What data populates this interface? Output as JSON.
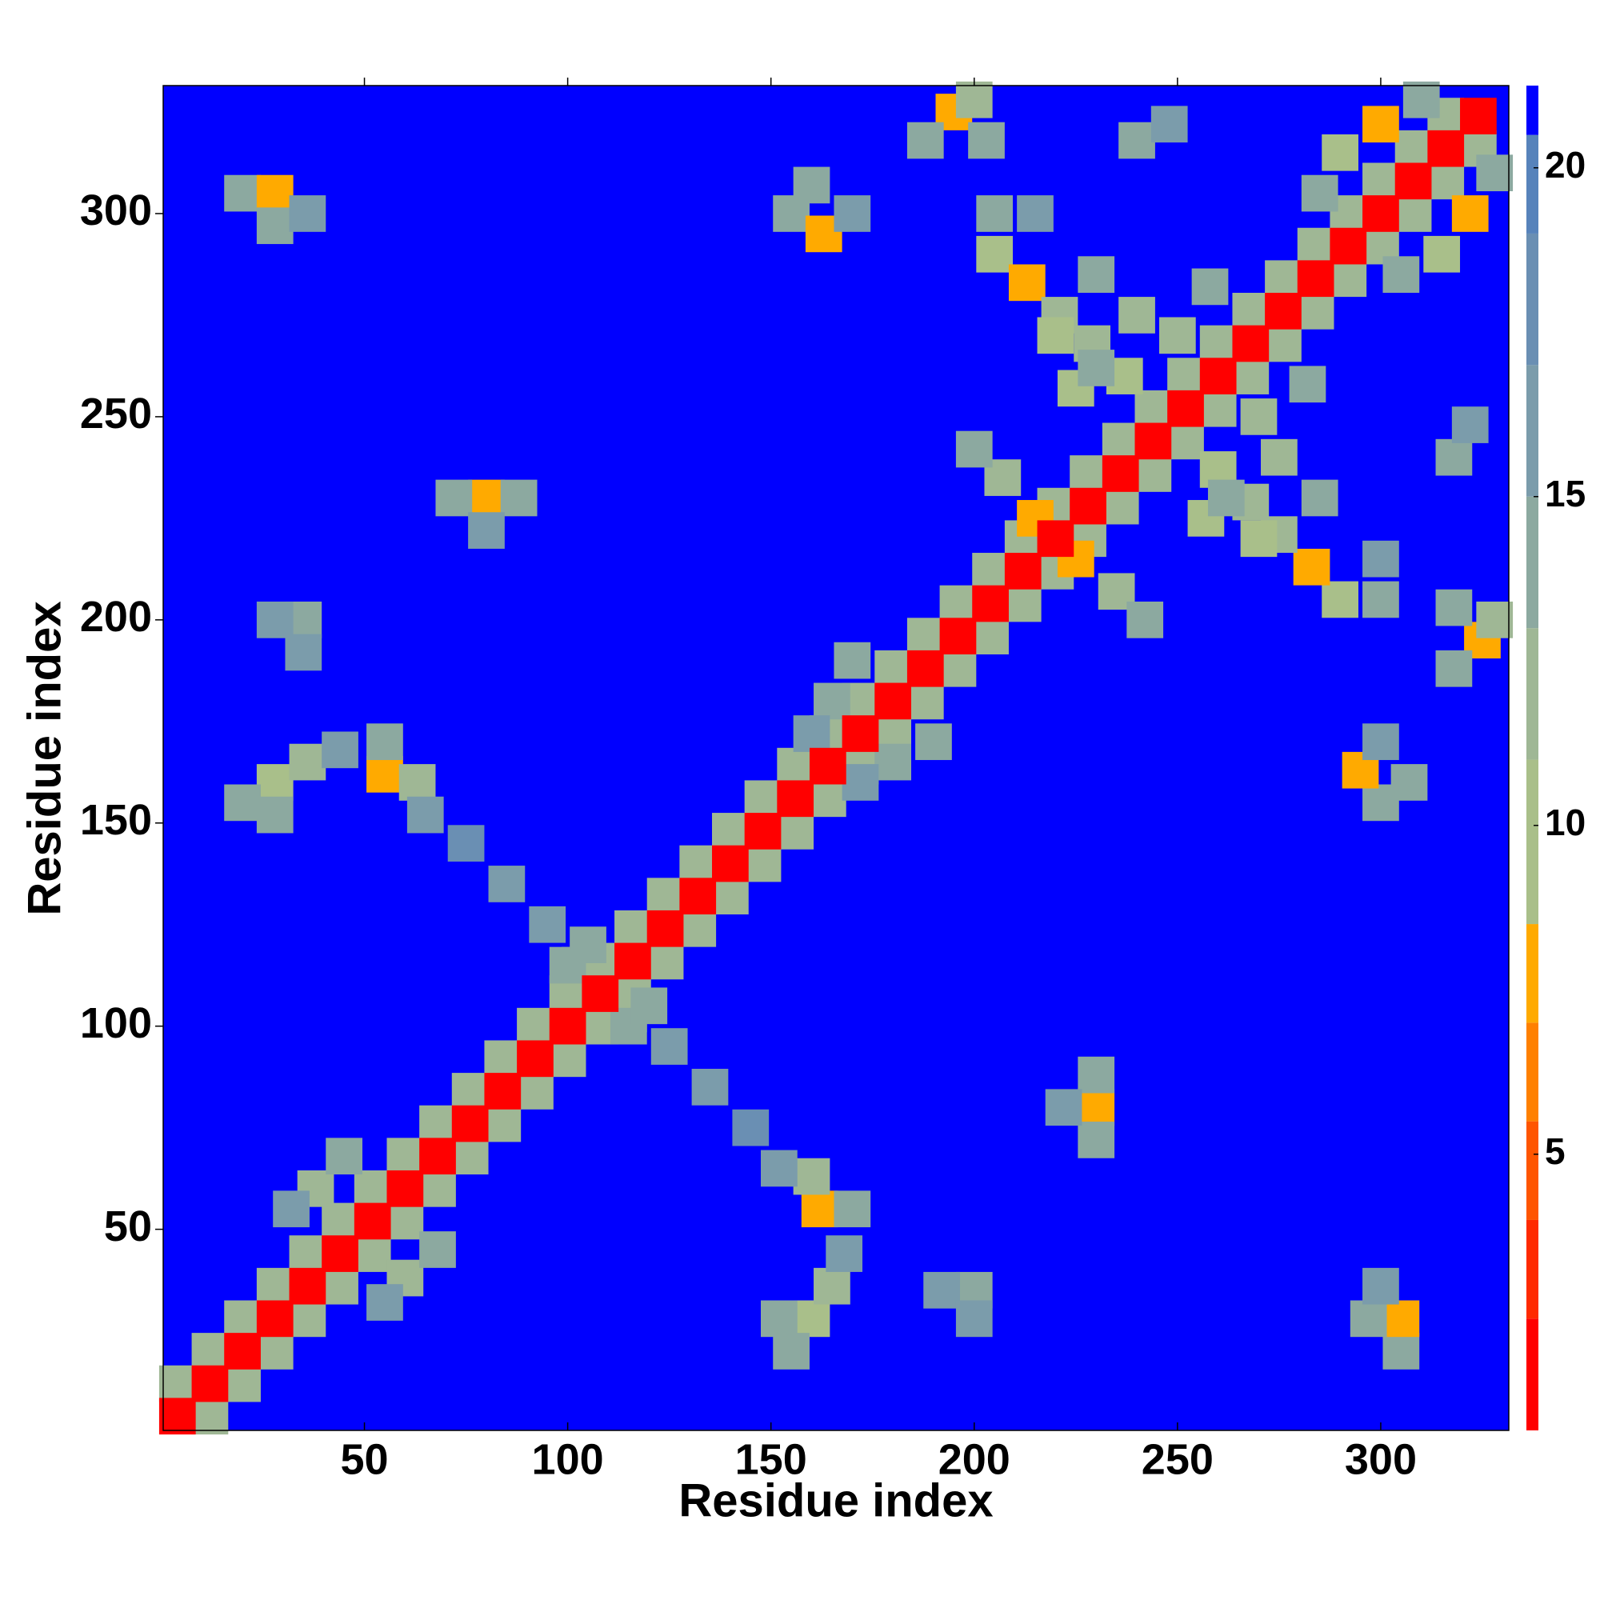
{
  "chart_data": {
    "type": "heatmap",
    "x_label": "Residue index",
    "y_label": "Residue index",
    "xlim": [
      0.5,
      331.5
    ],
    "ylim": [
      0.5,
      331.5
    ],
    "zlim": [
      0.8,
      21.25
    ],
    "xticks": [
      50,
      100,
      150,
      200,
      250,
      300
    ],
    "yticks": [
      50,
      100,
      150,
      200,
      250,
      300
    ],
    "zticks": [
      5,
      10,
      15,
      20
    ],
    "symmetric": true,
    "colorscale": [
      [
        0.8,
        "#ff0000"
      ],
      [
        2.5,
        "#ff2a00"
      ],
      [
        4,
        "#ff5500"
      ],
      [
        5.5,
        "#ff8000"
      ],
      [
        7,
        "#ffaa00"
      ],
      [
        8.5,
        "#a9bf8a"
      ],
      [
        11,
        "#9fb795"
      ],
      [
        13,
        "#8ca9a0"
      ],
      [
        15,
        "#7b9cab"
      ],
      [
        17,
        "#6a8fb3"
      ],
      [
        19,
        "#5783bb"
      ],
      [
        20.5,
        "#0000ff"
      ]
    ],
    "x": [
      4,
      12,
      20,
      28,
      36,
      44,
      52,
      60,
      68,
      76,
      84,
      92,
      100,
      108,
      116,
      124,
      132,
      140,
      148,
      156,
      164,
      172,
      180,
      188,
      196,
      204,
      212,
      220,
      228,
      236,
      244,
      252,
      260,
      268,
      276,
      284,
      292,
      300,
      308,
      316,
      20,
      28,
      28,
      36,
      35,
      35,
      28,
      28,
      36,
      20,
      44,
      28,
      55,
      63,
      55,
      65,
      80,
      72,
      88,
      80,
      75,
      85,
      95,
      103,
      38,
      45,
      32,
      100,
      105,
      155,
      163,
      170,
      160,
      195,
      188,
      203,
      200,
      165,
      170,
      160,
      205,
      213,
      221,
      229,
      237,
      215,
      207,
      200,
      225,
      220,
      230,
      240,
      250,
      258,
      205,
      215,
      290,
      300,
      285,
      310,
      240,
      248,
      230,
      4,
      12,
      20,
      28,
      36,
      44,
      52,
      60,
      68,
      76,
      84,
      92,
      100,
      108,
      116,
      124,
      132,
      140,
      148,
      156,
      164,
      172,
      180,
      188,
      196,
      204,
      212,
      220,
      228,
      236,
      244,
      252,
      260,
      268,
      276,
      284,
      292,
      300,
      308,
      316,
      324
    ],
    "y": [
      12,
      20,
      28,
      36,
      44,
      52,
      60,
      68,
      76,
      84,
      92,
      100,
      108,
      116,
      124,
      132,
      140,
      148,
      156,
      164,
      172,
      180,
      188,
      196,
      204,
      212,
      220,
      228,
      236,
      244,
      252,
      260,
      268,
      276,
      284,
      292,
      300,
      308,
      316,
      324,
      305,
      305,
      297,
      300,
      200,
      192,
      200,
      160,
      165,
      155,
      168,
      152,
      162,
      160,
      170,
      152,
      230,
      230,
      230,
      222,
      145,
      135,
      125,
      115,
      60,
      68,
      55,
      115,
      120,
      300,
      295,
      300,
      307,
      325,
      318,
      318,
      328,
      180,
      190,
      172,
      290,
      283,
      275,
      268,
      260,
      225,
      235,
      242,
      257,
      270,
      285,
      275,
      270,
      282,
      300,
      300,
      315,
      322,
      305,
      328,
      318,
      322,
      262,
      4,
      12,
      20,
      28,
      36,
      44,
      52,
      60,
      68,
      76,
      84,
      92,
      100,
      108,
      116,
      124,
      132,
      140,
      148,
      156,
      164,
      172,
      180,
      188,
      196,
      204,
      212,
      220,
      228,
      236,
      244,
      252,
      260,
      268,
      276,
      284,
      292,
      300,
      308,
      316,
      324
    ],
    "z": [
      11,
      11,
      11,
      11,
      11,
      11,
      11,
      11,
      11,
      11,
      11,
      11,
      11,
      11,
      11,
      11,
      11,
      11,
      11,
      11,
      11,
      11,
      11,
      11,
      11,
      11,
      11,
      11,
      11,
      11,
      11,
      11,
      11,
      11,
      11,
      11,
      11,
      11,
      11,
      11,
      13,
      7,
      14,
      15,
      13,
      15,
      16,
      10,
      12,
      14,
      15,
      13,
      8,
      12,
      14,
      15,
      7,
      13,
      14,
      15,
      17,
      16,
      15,
      12,
      12,
      14,
      15,
      13,
      14,
      13,
      8,
      15,
      14,
      8,
      13,
      14,
      12,
      13,
      14,
      15,
      10,
      8,
      11,
      12,
      10,
      8,
      12,
      14,
      9,
      10,
      13,
      12,
      11,
      13,
      14,
      15,
      10,
      8,
      13,
      14,
      14,
      16,
      13,
      2,
      2,
      2,
      2,
      2,
      2,
      2,
      2,
      2,
      2,
      2,
      2,
      2,
      2,
      2,
      2,
      2,
      2,
      2,
      2,
      2,
      2,
      2,
      2,
      2,
      2,
      2,
      2,
      2,
      2,
      2,
      2,
      2,
      2,
      2,
      2,
      2,
      2,
      2,
      2,
      2
    ]
  }
}
